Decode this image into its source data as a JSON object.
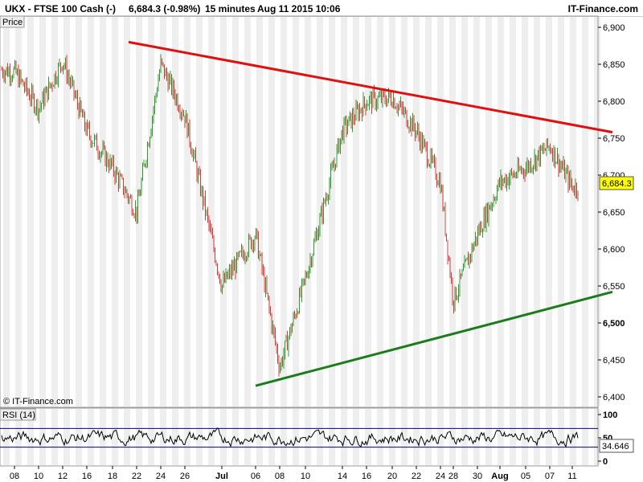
{
  "header": {
    "symbol_line": "UKX - FTSE 100 Cash (-)",
    "last_line": "6,684.3 (-0.98%)",
    "interval": "15 minutes",
    "datetime": "Aug 11 2015 10:06",
    "brand": "IT-Finance.com"
  },
  "panels": {
    "price_label": "Price",
    "rsi_label": "RSI (14)",
    "copyright": "© IT-Finance.com"
  },
  "colors": {
    "up_candle": "#2e9b2e",
    "down_candle": "#d23c3c",
    "resistance": "#e01010",
    "support": "#1a7d1a",
    "price_badge": "#ffff00",
    "stripe": "#eeeeee",
    "rsi_band": "#000080"
  },
  "chart_data": [
    {
      "type": "line",
      "description_series": "FTSE 100 Cash 15-minute price",
      "ylim": [
        6400,
        6900
      ],
      "y_ticks": [
        "6,900",
        "6,850",
        "6,800",
        "6,750",
        "6,700",
        "6,650",
        "6,600",
        "6,550",
        "6,500",
        "6,450",
        "6,400"
      ],
      "y_tick_values": [
        6900,
        6850,
        6800,
        6750,
        6700,
        6650,
        6600,
        6550,
        6500,
        6450,
        6400
      ],
      "bold_tick": "6,500",
      "last_price": "6,684.3",
      "x_ticks": [
        "08",
        "10",
        "12",
        "16",
        "18",
        "22",
        "24",
        "26",
        "Jul",
        "06",
        "08",
        "10",
        "14",
        "16",
        "20",
        "22",
        "24",
        "28",
        "30",
        "Aug",
        "05",
        "07",
        "11"
      ],
      "bold_x_ticks": [
        "Jul",
        "Aug"
      ],
      "series": [
        {
          "x": [
            "Jun 08",
            "Jun 10",
            "Jun 12",
            "Jun 16",
            "Jun 18",
            "Jun 22",
            "Jun 24",
            "Jun 26",
            "Jul 01",
            "Jul 06",
            "Jul 08",
            "Jul 10",
            "Jul 14",
            "Jul 16",
            "Jul 20",
            "Jul 22",
            "Jul 24",
            "Jul 28",
            "Jul 30",
            "Aug 03",
            "Aug 05",
            "Aug 07",
            "Aug 11"
          ],
          "values": [
            6840,
            6790,
            6855,
            6760,
            6710,
            6650,
            6850,
            6780,
            6550,
            6620,
            6440,
            6560,
            6760,
            6800,
            6805,
            6760,
            6690,
            6530,
            6620,
            6690,
            6710,
            6740,
            6684
          ]
        }
      ],
      "trendlines": [
        {
          "name": "resistance",
          "x": [
            "Jun 22",
            "Aug 11"
          ],
          "values": [
            6880,
            6758
          ]
        },
        {
          "name": "support",
          "x": [
            "Jul 06",
            "Aug 11"
          ],
          "values": [
            6415,
            6542
          ]
        }
      ]
    },
    {
      "type": "line",
      "title": "RSI (14)",
      "ylim": [
        0,
        100
      ],
      "y_ticks": [
        "100",
        "50",
        "0"
      ],
      "y_tick_values": [
        100,
        50,
        0
      ],
      "bands": [
        30,
        70
      ],
      "last_value": "34.646"
    }
  ]
}
